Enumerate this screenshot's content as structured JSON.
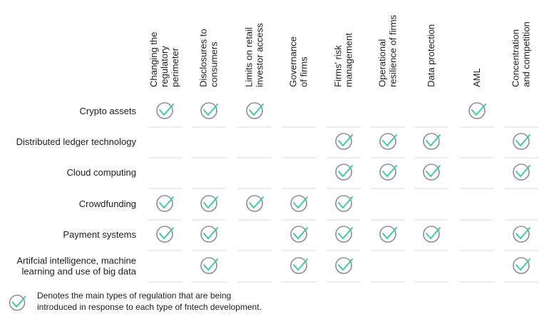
{
  "chart_data": {
    "type": "table",
    "columns": [
      [
        "Changing the",
        "regulatory",
        "perimeter"
      ],
      [
        "Disclosures to",
        "consumers"
      ],
      [
        "Limits on retail",
        "investor access"
      ],
      [
        "Governance",
        "of firms"
      ],
      [
        "Firms' risk",
        "management"
      ],
      [
        "Operational",
        "resilience of firms"
      ],
      [
        "Data protection"
      ],
      [
        "AML"
      ],
      [
        "Concentration",
        "and competition"
      ]
    ],
    "rows": [
      {
        "label": [
          "Crypto assets"
        ],
        "checks": [
          1,
          1,
          1,
          0,
          0,
          0,
          0,
          1,
          0
        ]
      },
      {
        "label": [
          "Distributed ledger technology"
        ],
        "checks": [
          0,
          0,
          0,
          0,
          1,
          1,
          1,
          0,
          1
        ]
      },
      {
        "label": [
          "Cloud computing"
        ],
        "checks": [
          0,
          0,
          0,
          0,
          1,
          1,
          1,
          0,
          1
        ]
      },
      {
        "label": [
          "Crowdfunding"
        ],
        "checks": [
          1,
          1,
          1,
          1,
          1,
          0,
          0,
          0,
          0
        ]
      },
      {
        "label": [
          "Payment systems"
        ],
        "checks": [
          1,
          1,
          0,
          1,
          1,
          1,
          1,
          0,
          1
        ]
      },
      {
        "label": [
          "Artifcial intelligence, machine",
          "learning and use of big data"
        ],
        "checks": [
          0,
          1,
          0,
          1,
          1,
          0,
          0,
          0,
          1
        ]
      }
    ],
    "legend": [
      "Denotes the main types of regulation that are being",
      "introduced in response to each type of fntech development."
    ],
    "colors": {
      "check": "#3cc9a0",
      "circle": "#8a8f96",
      "divider": "#d9d9d9",
      "text": "#1e1e1e"
    }
  }
}
